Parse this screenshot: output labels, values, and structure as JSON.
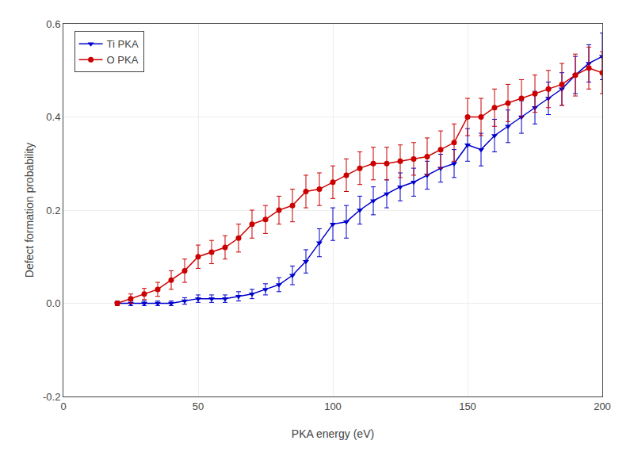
{
  "chart_data": {
    "type": "line",
    "xlabel": "PKA energy (eV)",
    "ylabel": "Defect formation probability",
    "x": [
      20,
      25,
      30,
      35,
      40,
      45,
      50,
      55,
      60,
      65,
      70,
      75,
      80,
      85,
      90,
      95,
      100,
      105,
      110,
      115,
      120,
      125,
      130,
      135,
      140,
      145,
      150,
      155,
      160,
      165,
      170,
      175,
      180,
      185,
      190,
      195,
      200
    ],
    "series": [
      {
        "name": "Ti PKA",
        "color": "#0000cc",
        "marker": "triangle-down",
        "line_style": "solid",
        "values": [
          0.0,
          0.0,
          0.0,
          0.0,
          0.0,
          0.005,
          0.01,
          0.01,
          0.01,
          0.015,
          0.02,
          0.03,
          0.04,
          0.06,
          0.09,
          0.13,
          0.17,
          0.175,
          0.2,
          0.22,
          0.235,
          0.25,
          0.26,
          0.275,
          0.29,
          0.3,
          0.34,
          0.33,
          0.36,
          0.38,
          0.4,
          0.42,
          0.44,
          0.46,
          0.49,
          0.515,
          0.53
        ],
        "yerr": [
          0.005,
          0.005,
          0.005,
          0.005,
          0.005,
          0.007,
          0.008,
          0.008,
          0.008,
          0.01,
          0.01,
          0.012,
          0.015,
          0.02,
          0.025,
          0.03,
          0.035,
          0.035,
          0.03,
          0.03,
          0.03,
          0.03,
          0.03,
          0.03,
          0.03,
          0.03,
          0.035,
          0.035,
          0.035,
          0.035,
          0.035,
          0.035,
          0.035,
          0.035,
          0.04,
          0.04,
          0.05
        ]
      },
      {
        "name": "O PKA",
        "color": "#cc0000",
        "marker": "circle",
        "line_style": "solid",
        "values": [
          0.0,
          0.01,
          0.02,
          0.03,
          0.05,
          0.07,
          0.1,
          0.11,
          0.12,
          0.14,
          0.17,
          0.18,
          0.2,
          0.21,
          0.24,
          0.245,
          0.26,
          0.275,
          0.29,
          0.3,
          0.3,
          0.305,
          0.31,
          0.315,
          0.33,
          0.345,
          0.4,
          0.4,
          0.42,
          0.43,
          0.44,
          0.45,
          0.46,
          0.47,
          0.49,
          0.505,
          0.495
        ],
        "yerr": [
          0.005,
          0.01,
          0.012,
          0.015,
          0.02,
          0.025,
          0.025,
          0.025,
          0.025,
          0.03,
          0.03,
          0.03,
          0.03,
          0.035,
          0.035,
          0.035,
          0.035,
          0.035,
          0.035,
          0.035,
          0.035,
          0.035,
          0.035,
          0.04,
          0.04,
          0.04,
          0.04,
          0.04,
          0.04,
          0.04,
          0.04,
          0.04,
          0.04,
          0.045,
          0.045,
          0.045,
          0.045
        ]
      }
    ],
    "xlim": [
      0,
      200
    ],
    "xticks": [
      0,
      50,
      100,
      150,
      200
    ],
    "ylim": [
      -0.2,
      0.6
    ],
    "yticks": [
      -0.2,
      {
        "value": 0,
        "label": "0.0"
      },
      0.2,
      0.4,
      0.6
    ],
    "grid": true,
    "legend": "upper left"
  }
}
